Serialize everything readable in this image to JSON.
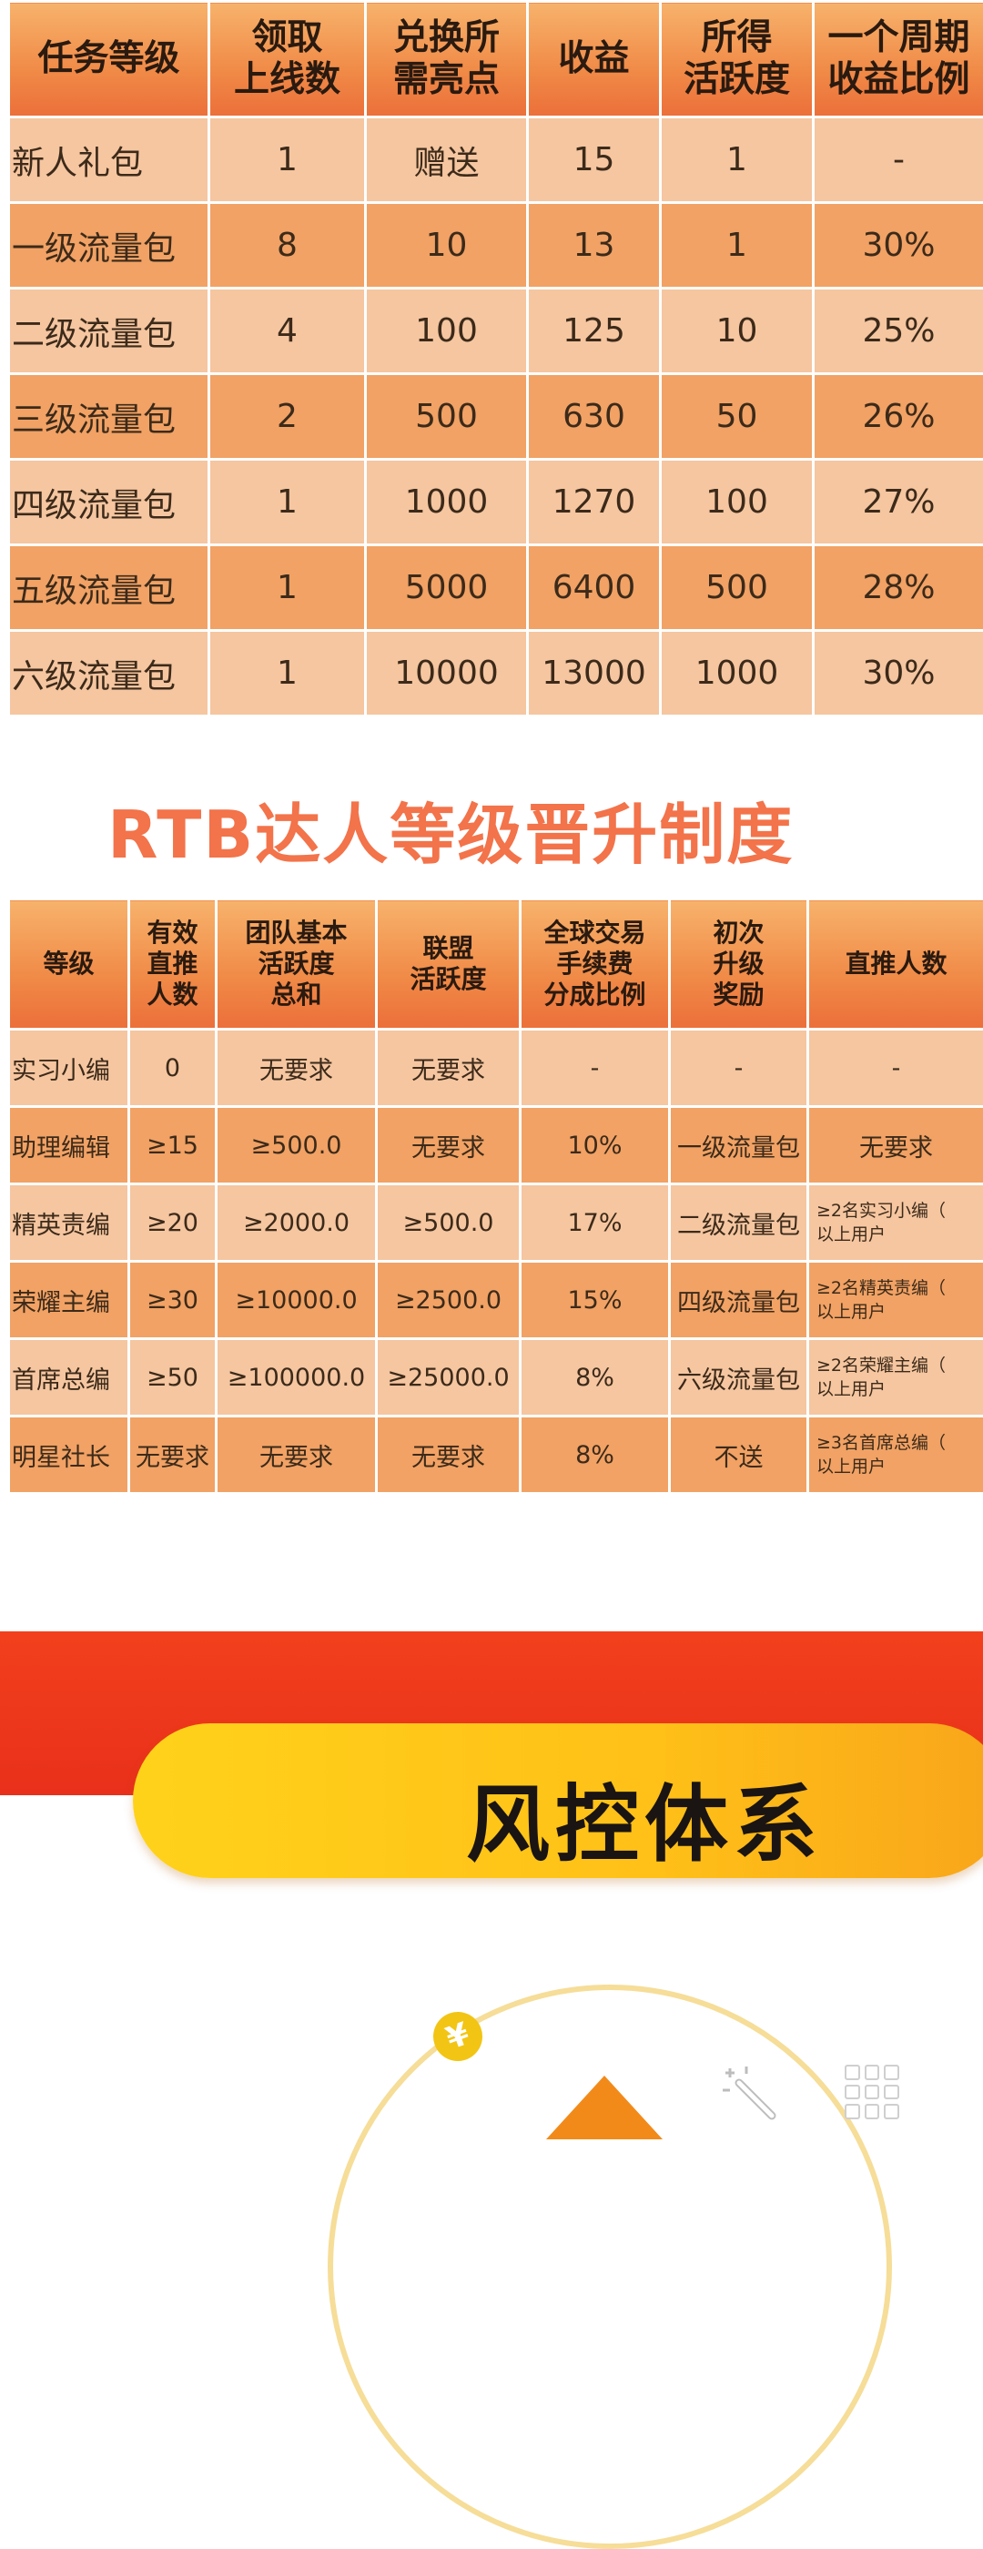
{
  "table1": {
    "headers": [
      "任务等级",
      "领取\n上线数",
      "兑换所\n需亮点",
      "收益",
      "所得\n活跃度",
      "一个周期\n收益比例"
    ],
    "rows": [
      [
        "新人礼包",
        "1",
        "赠送",
        "15",
        "1",
        "-"
      ],
      [
        "一级流量包",
        "8",
        "10",
        "13",
        "1",
        "30%"
      ],
      [
        "二级流量包",
        "4",
        "100",
        "125",
        "10",
        "25%"
      ],
      [
        "三级流量包",
        "2",
        "500",
        "630",
        "50",
        "26%"
      ],
      [
        "四级流量包",
        "1",
        "1000",
        "1270",
        "100",
        "27%"
      ],
      [
        "五级流量包",
        "1",
        "5000",
        "6400",
        "500",
        "28%"
      ],
      [
        "六级流量包",
        "1",
        "10000",
        "13000",
        "1000",
        "30%"
      ]
    ]
  },
  "section2_title": "RTB达人等级晋升制度",
  "table2": {
    "headers": [
      "等级",
      "有效\n直推\n人数",
      "团队基本\n活跃度\n总和",
      "联盟\n活跃度",
      "全球交易\n手续费\n分成比例",
      "初次\n升级\n奖励",
      "直推人数"
    ],
    "rows": [
      [
        "实习小编",
        "0",
        "无要求",
        "无要求",
        "-",
        "-",
        "-"
      ],
      [
        "助理编辑",
        "≥15",
        "≥500.0",
        "无要求",
        "10%",
        "一级流量包",
        "无要求"
      ],
      [
        "精英责编",
        "≥20",
        "≥2000.0",
        "≥500.0",
        "17%",
        "二级流量包",
        "≥2名实习小编（\n以上用户"
      ],
      [
        "荣耀主编",
        "≥30",
        "≥10000.0",
        "≥2500.0",
        "15%",
        "四级流量包",
        "≥2名精英责编（\n以上用户"
      ],
      [
        "首席总编",
        "≥50",
        "≥100000.0",
        "≥25000.0",
        "8%",
        "六级流量包",
        "≥2名荣耀主编（\n以上用户"
      ],
      [
        "明星社长",
        "无要求",
        "无要求",
        "无要求",
        "8%",
        "不送",
        "≥3名首席总编（\n以上用户"
      ]
    ]
  },
  "banner_title": "风控体系",
  "coin_symbol": "¥",
  "colors": {
    "header_orange": "#f08a47",
    "row_light": "#f5c6a0",
    "row_dark": "#f1a264",
    "title_orange": "#f3734a",
    "red_band": "#ec351b",
    "banner_yellow": "#ffc018"
  }
}
